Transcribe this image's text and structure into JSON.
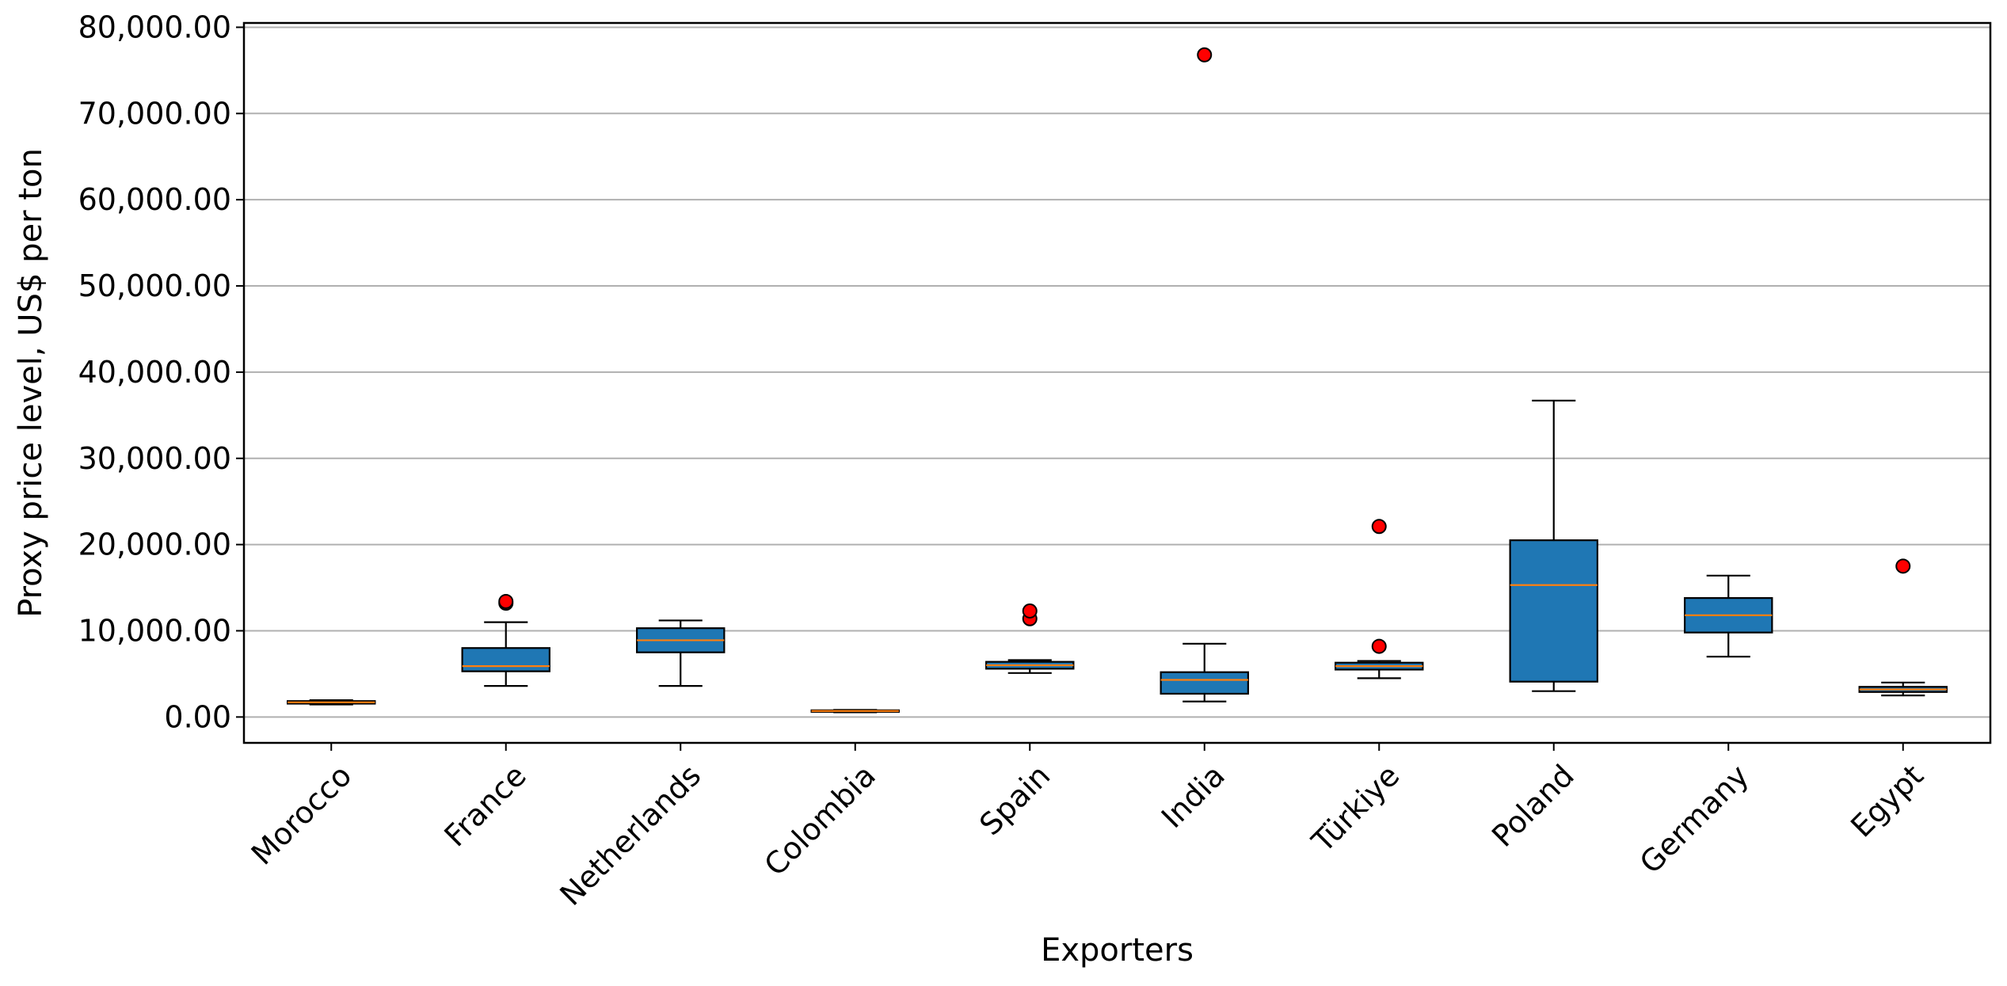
{
  "chart_data": {
    "type": "boxplot",
    "title": "",
    "xlabel": "Exporters",
    "ylabel": "Proxy price level, US$ per ton",
    "ylim": [
      -3000,
      80500
    ],
    "yticks": [
      0,
      10000,
      20000,
      30000,
      40000,
      50000,
      60000,
      70000,
      80000
    ],
    "ytick_labels": [
      "0.00",
      "10,000.00",
      "20,000.00",
      "30,000.00",
      "40,000.00",
      "50,000.00",
      "60,000.00",
      "70,000.00",
      "80,000.00"
    ],
    "grid": "horizontal",
    "colors": {
      "box_fill": "#1f77b4",
      "median": "#ff7f0e",
      "outlier": "#ff0000",
      "grid": "#b0b0b0"
    },
    "categories": [
      "Morocco",
      "France",
      "Netherlands",
      "Colombia",
      "Spain",
      "India",
      "Türkiye",
      "Poland",
      "Germany",
      "Egypt"
    ],
    "boxes": [
      {
        "category": "Morocco",
        "whisker_low": 1450,
        "q1": 1550,
        "median": 1700,
        "q3": 1850,
        "whisker_high": 1950,
        "outliers": []
      },
      {
        "category": "France",
        "whisker_low": 3600,
        "q1": 5300,
        "median": 5900,
        "q3": 8000,
        "whisker_high": 11000,
        "outliers": [
          13200,
          13400
        ]
      },
      {
        "category": "Netherlands",
        "whisker_low": 3600,
        "q1": 7500,
        "median": 8900,
        "q3": 10300,
        "whisker_high": 11200,
        "outliers": []
      },
      {
        "category": "Colombia",
        "whisker_low": 550,
        "q1": 600,
        "median": 700,
        "q3": 780,
        "whisker_high": 830,
        "outliers": []
      },
      {
        "category": "Spain",
        "whisker_low": 5100,
        "q1": 5600,
        "median": 6000,
        "q3": 6400,
        "whisker_high": 6600,
        "outliers": [
          11400,
          12300
        ]
      },
      {
        "category": "India",
        "whisker_low": 1800,
        "q1": 2700,
        "median": 4300,
        "q3": 5200,
        "whisker_high": 8500,
        "outliers": [
          76800
        ]
      },
      {
        "category": "Türkiye",
        "whisker_low": 4500,
        "q1": 5500,
        "median": 5900,
        "q3": 6300,
        "whisker_high": 6500,
        "outliers": [
          8200,
          22100
        ]
      },
      {
        "category": "Poland",
        "whisker_low": 3000,
        "q1": 4100,
        "median": 15300,
        "q3": 20500,
        "whisker_high": 36700,
        "outliers": []
      },
      {
        "category": "Germany",
        "whisker_low": 7000,
        "q1": 9800,
        "median": 11800,
        "q3": 13800,
        "whisker_high": 16400,
        "outliers": []
      },
      {
        "category": "Egypt",
        "whisker_low": 2500,
        "q1": 2900,
        "median": 3200,
        "q3": 3500,
        "whisker_high": 4000,
        "outliers": [
          17500
        ]
      }
    ]
  }
}
